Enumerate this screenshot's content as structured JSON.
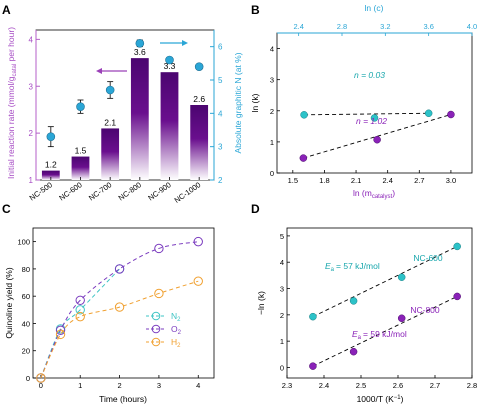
{
  "panels": {
    "a": "A",
    "b": "B",
    "c": "C",
    "d": "D"
  },
  "chart_data": [
    {
      "panel": "A",
      "type": "bar",
      "categories": [
        "NC-500",
        "NC-600",
        "NC-700",
        "NC-800",
        "NC-900",
        "NC-1000"
      ],
      "values": [
        1.2,
        1.5,
        2.1,
        3.6,
        3.3,
        2.6
      ],
      "value_labels": [
        "1.2",
        "1.5",
        "2.1",
        "3.6",
        "3.3",
        "2.6"
      ],
      "ylabel": "Initial reaction rate (mmol/g",
      "ylabel_sub": "catal",
      "ylabel_end": " per hour)",
      "ylim": [
        1,
        4.2
      ],
      "yticks": [
        "1",
        "2",
        "3",
        "4"
      ],
      "bar_color_top": "#6a0f8e",
      "bar_color_bottom": "#ffffff",
      "y2label": "Absolute graphitic N (at %)",
      "y2lim": [
        2,
        6.5
      ],
      "y2ticks": [
        "2",
        "3",
        "4",
        "5",
        "6"
      ],
      "y2_values": [
        3.3,
        4.2,
        4.7,
        6.1,
        5.6,
        5.4
      ],
      "y2_errors": [
        0.3,
        0.2,
        0.25,
        0.1,
        0.05,
        0.05
      ],
      "y2_color": "#2aa6d6"
    },
    {
      "panel": "B",
      "type": "scatter",
      "xlabel": "ln (m",
      "xlabel_sub": "catalyst",
      "xlabel_end": ")",
      "ylabel": "ln (k)",
      "x2label": "ln (c)",
      "xlim": [
        1.35,
        3.2
      ],
      "xticks": [
        "1.5",
        "1.8",
        "2.1",
        "2.4",
        "2.7",
        "3.0"
      ],
      "ylim": [
        0,
        4.5
      ],
      "yticks": [
        "0",
        "1",
        "2",
        "3",
        "4"
      ],
      "x2lim": [
        2.2,
        4.0
      ],
      "x2ticks": [
        "2.4",
        "2.8",
        "3.2",
        "3.6",
        "4.0"
      ],
      "series": [
        {
          "x2": [
            2.45,
            3.1,
            3.6
          ],
          "y": [
            1.87,
            1.77,
            1.92
          ],
          "color": "#2cc2c8",
          "fit_label": "n = 0.03"
        },
        {
          "x": [
            1.6,
            2.3,
            3.0
          ],
          "y": [
            0.48,
            1.07,
            1.88
          ],
          "color": "#8a22b8",
          "fit_label": "n = 1.02"
        }
      ]
    },
    {
      "panel": "C",
      "type": "line",
      "xlabel": "Time (hours)",
      "ylabel": "Quinoline yield (%)",
      "xlim": [
        -0.2,
        4.4
      ],
      "xticks": [
        "0",
        "1",
        "2",
        "3",
        "4"
      ],
      "ylim": [
        0,
        110
      ],
      "yticks": [
        "0",
        "20",
        "40",
        "60",
        "80",
        "100"
      ],
      "series": [
        {
          "name": "N",
          "name_sub": "2",
          "x": [
            0,
            0.5,
            1,
            2
          ],
          "y": [
            0,
            36,
            50,
            80
          ],
          "color": "#3ec4c4"
        },
        {
          "name": "O",
          "name_sub": "2",
          "x": [
            0,
            0.5,
            1,
            2,
            3,
            4
          ],
          "y": [
            0,
            35,
            57,
            80,
            95,
            100
          ],
          "color": "#7a3bbf"
        },
        {
          "name": "H",
          "name_sub": "2",
          "x": [
            0,
            0.5,
            1,
            2,
            3,
            4
          ],
          "y": [
            0,
            32,
            45,
            52,
            62,
            71
          ],
          "color": "#f0a030"
        }
      ]
    },
    {
      "panel": "D",
      "type": "scatter",
      "xlabel": "1000/T (K",
      "xlabel_sup": "−1",
      "xlabel_end": ")",
      "ylabel": "−ln (k)",
      "xlim": [
        2.3,
        2.8
      ],
      "xticks": [
        "2.3",
        "2.4",
        "2.5",
        "2.6",
        "2.7",
        "2.8"
      ],
      "ylim": [
        -0.4,
        5.3
      ],
      "yticks": [
        "0",
        "1",
        "2",
        "3",
        "4",
        "5"
      ],
      "series": [
        {
          "name": "NC-600",
          "x": [
            2.37,
            2.48,
            2.61,
            2.76
          ],
          "y": [
            1.93,
            2.53,
            3.43,
            4.6
          ],
          "color": "#2cc2c8",
          "ea_text": "= 57 kJ/mol"
        },
        {
          "name": "NC-800",
          "x": [
            2.37,
            2.48,
            2.61,
            2.76
          ],
          "y": [
            0.05,
            0.6,
            1.87,
            2.7
          ],
          "color": "#8a22b8",
          "ea_text": "= 59 kJ/mol"
        }
      ],
      "ea_symbol": "E",
      "ea_sub": "a"
    }
  ]
}
